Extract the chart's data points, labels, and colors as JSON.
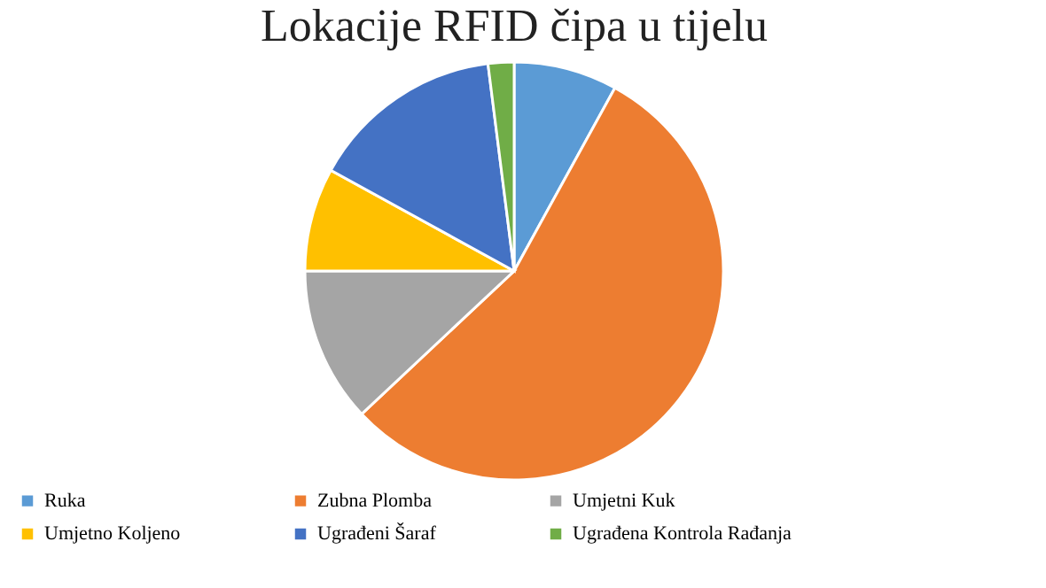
{
  "chart_data": {
    "type": "pie",
    "title": "Lokacije RFID čipa u tijelu",
    "categories": [
      "Ruka",
      "Zubna Plomba",
      "Umjetni Kuk",
      "Umjetno Koljeno",
      "Ugrađeni Šaraf",
      "Ugrađena Kontrola Rađanja"
    ],
    "values": [
      8,
      55,
      12,
      8,
      15,
      2
    ],
    "colors": [
      "#5b9bd5",
      "#ed7d31",
      "#a5a5a5",
      "#ffc000",
      "#4472c4",
      "#70ad47"
    ],
    "legend": "bottom"
  }
}
